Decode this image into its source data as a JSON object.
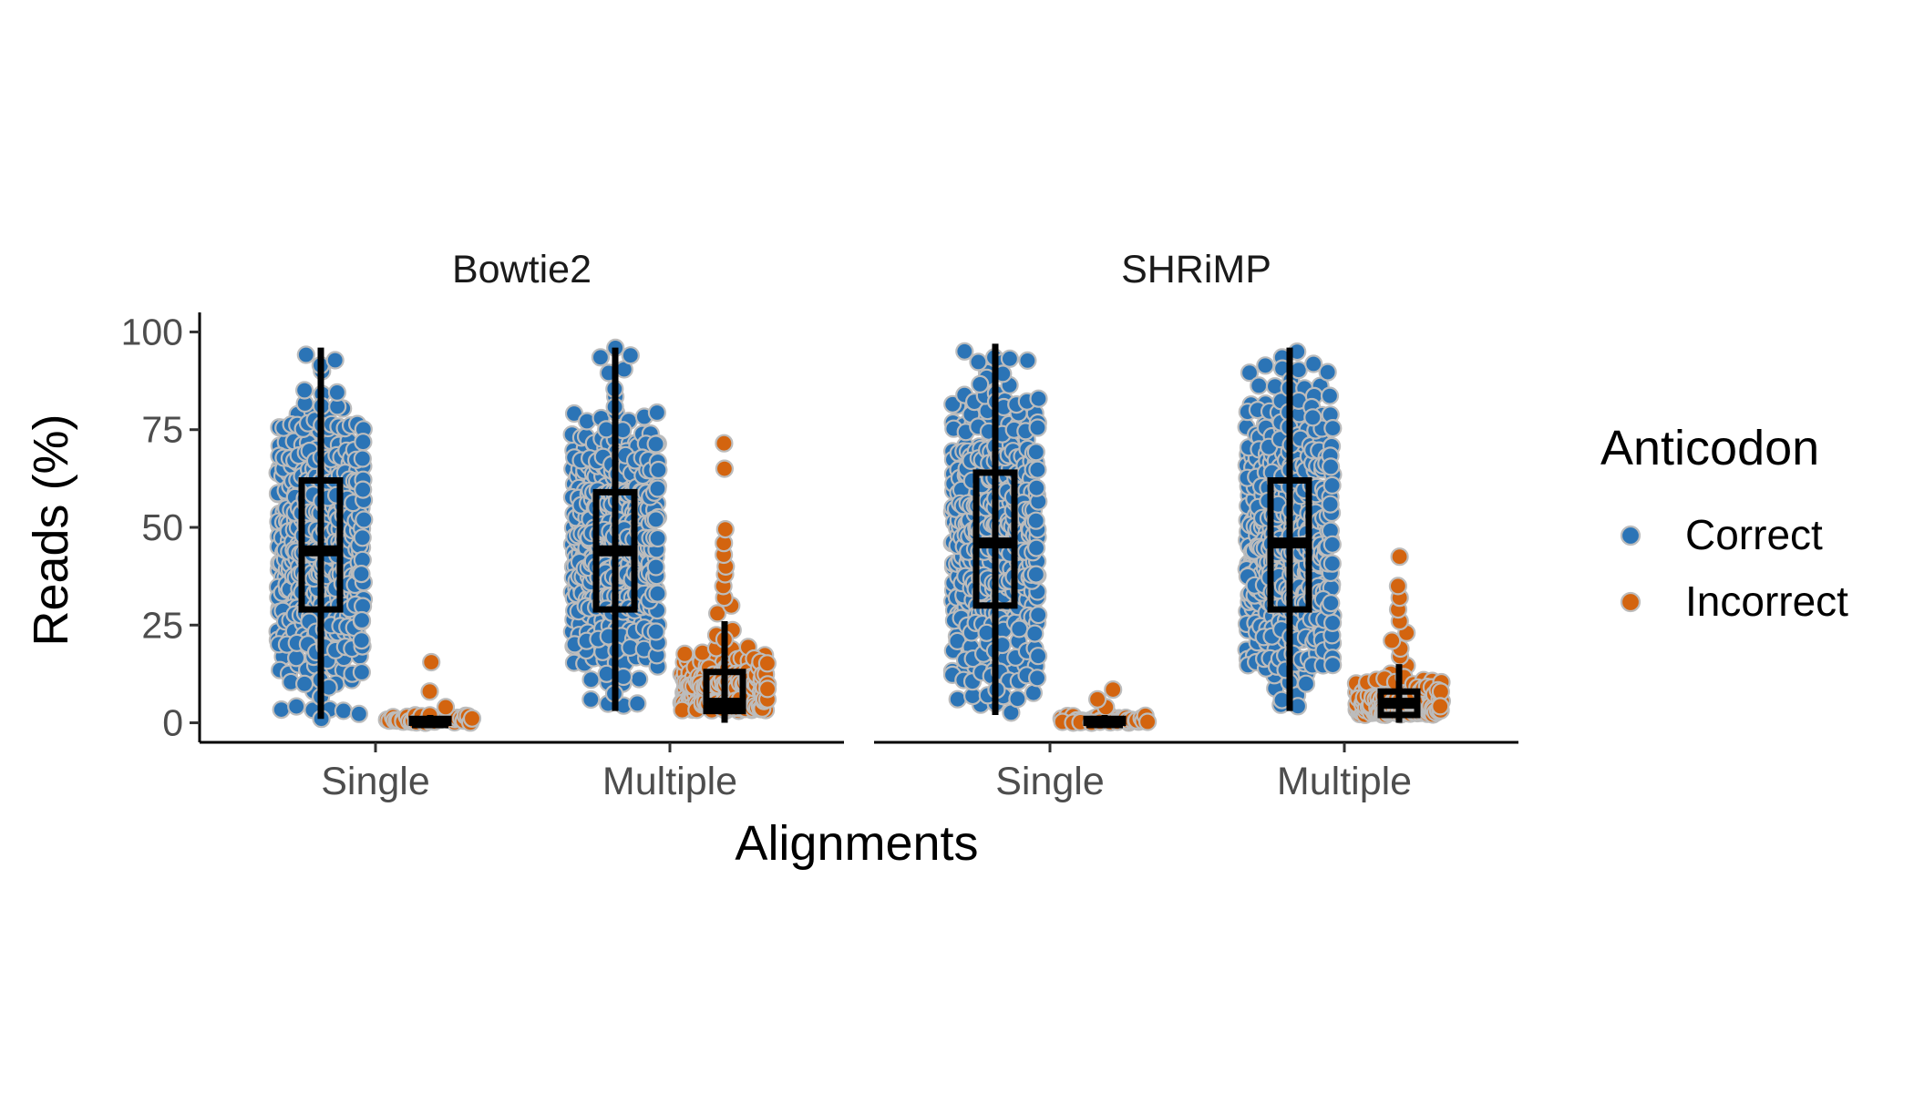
{
  "chart_data": {
    "type": "beeswarm-boxplot",
    "ylabel": "Reads (%)",
    "xlabel": "Alignments",
    "ylim": [
      -5,
      105
    ],
    "y_ticks": [
      0,
      25,
      50,
      75,
      100
    ],
    "y_tick_labels": [
      "0",
      "25",
      "50",
      "75",
      "100"
    ],
    "categories": [
      "Single",
      "Multiple"
    ],
    "legend": {
      "title": "Anticodon",
      "placement": "right",
      "entries": [
        {
          "label": "Correct",
          "color": "#2b74b6"
        },
        {
          "label": "Incorrect",
          "color": "#d3640f"
        }
      ]
    },
    "panels": [
      {
        "title": "Bowtie2",
        "groups": [
          {
            "category": "Single",
            "series": "Correct",
            "box": {
              "whisker_low": 1,
              "q1": 29,
              "median": 44,
              "q3": 62,
              "whisker_high": 96
            },
            "range": [
              1,
              96
            ],
            "n": 420
          },
          {
            "category": "Single",
            "series": "Incorrect",
            "box": {
              "whisker_low": 0,
              "q1": 0,
              "median": 0,
              "q3": 1,
              "whisker_high": 2
            },
            "range": [
              0,
              2
            ],
            "n": 40,
            "outliers": [
              4,
              8,
              15.5
            ]
          },
          {
            "category": "Multiple",
            "series": "Correct",
            "box": {
              "whisker_low": 3,
              "q1": 29,
              "median": 44,
              "q3": 59,
              "whisker_high": 96
            },
            "range": [
              3,
              96
            ],
            "n": 420
          },
          {
            "category": "Multiple",
            "series": "Incorrect",
            "box": {
              "whisker_low": 0,
              "q1": 3,
              "median": 5,
              "q3": 13,
              "whisker_high": 26
            },
            "range": [
              0,
              26
            ],
            "n": 200,
            "outliers": [
              28,
              30,
              32,
              35,
              38,
              40,
              43,
              46,
              49.5,
              65,
              71.5
            ]
          }
        ]
      },
      {
        "title": "SHRiMP",
        "groups": [
          {
            "category": "Single",
            "series": "Correct",
            "box": {
              "whisker_low": 2,
              "q1": 30,
              "median": 46,
              "q3": 64,
              "whisker_high": 97
            },
            "range": [
              2,
              97
            ],
            "n": 420
          },
          {
            "category": "Single",
            "series": "Incorrect",
            "box": {
              "whisker_low": 0,
              "q1": 0,
              "median": 0,
              "q3": 1,
              "whisker_high": 2
            },
            "range": [
              0,
              2
            ],
            "n": 40,
            "outliers": [
              4,
              6,
              8.5
            ]
          },
          {
            "category": "Multiple",
            "series": "Correct",
            "box": {
              "whisker_low": 3,
              "q1": 29,
              "median": 46,
              "q3": 62,
              "whisker_high": 96
            },
            "range": [
              3,
              96
            ],
            "n": 420
          },
          {
            "category": "Multiple",
            "series": "Incorrect",
            "box": {
              "whisker_low": 0,
              "q1": 2,
              "median": 5,
              "q3": 8,
              "whisker_high": 15
            },
            "range": [
              0,
              15
            ],
            "n": 160,
            "outliers": [
              17,
              19,
              21,
              23,
              26,
              29,
              32,
              35,
              42.5
            ]
          }
        ]
      }
    ]
  }
}
